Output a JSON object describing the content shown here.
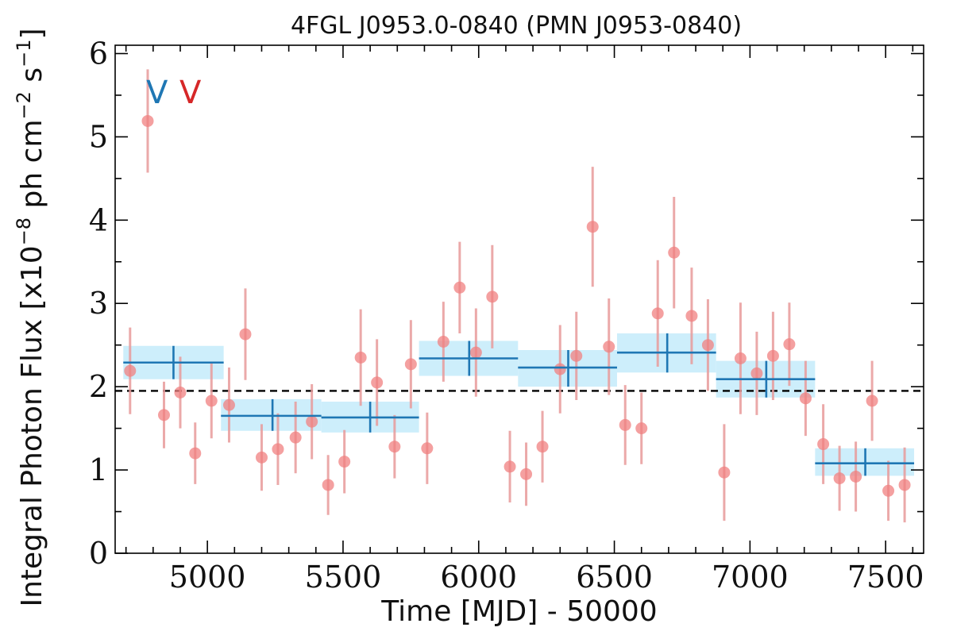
{
  "chart_data": {
    "type": "scatter",
    "title": "4FGL J0953.0-0840 (PMN J0953-0840)",
    "xlabel": "Time [MJD] - 50000",
    "ylabel": "Integral Photon Flux [x10",
    "ylabel_exp1": "−8",
    "ylabel_mid": " ph cm",
    "ylabel_exp2": "−2",
    "ylabel_mid2": " s",
    "ylabel_exp3": "−1",
    "ylabel_end": "]",
    "xlim": [
      4660,
      7640
    ],
    "ylim": [
      0,
      6.1
    ],
    "x_ticks": [
      5000,
      5500,
      6000,
      6500,
      7000,
      7500
    ],
    "x_tick_labels": [
      "5000",
      "5500",
      "6000",
      "6500",
      "7000",
      "7500"
    ],
    "y_ticks": [
      0,
      1,
      2,
      3,
      4,
      5,
      6
    ],
    "y_tick_labels": [
      "0",
      "1",
      "2",
      "3",
      "4",
      "5",
      "6"
    ],
    "reference_flux": 1.95,
    "legend": [
      {
        "label": "V",
        "color": "#1f77b4"
      },
      {
        "label": "V",
        "color": "#d62728"
      }
    ],
    "colors": {
      "bin_line": "#1f77b4",
      "bin_band": "#cdeefb",
      "points": "#f08080",
      "point_err": "#e89a9a",
      "reference_line": "#000000"
    },
    "series": [
      {
        "kind": "binned",
        "x": [
          4875,
          5240,
          5600,
          5965,
          6330,
          6695,
          7060,
          7425
        ],
        "x_lo": [
          4690,
          5050,
          5420,
          5780,
          6145,
          6510,
          6875,
          7240
        ],
        "x_hi": [
          5060,
          5420,
          5780,
          6145,
          6510,
          6875,
          7240,
          7605
        ],
        "y": [
          2.29,
          1.65,
          1.63,
          2.34,
          2.23,
          2.41,
          2.09,
          1.08
        ],
        "y_lo": [
          2.09,
          1.47,
          1.45,
          2.13,
          2.0,
          2.17,
          1.87,
          0.93
        ],
        "y_hi": [
          2.49,
          1.85,
          1.82,
          2.55,
          2.44,
          2.64,
          2.31,
          1.26
        ]
      },
      {
        "kind": "points",
        "x": [
          4715,
          4780,
          4840,
          4900,
          4955,
          5015,
          5080,
          5140,
          5200,
          5260,
          5325,
          5385,
          5445,
          5505,
          5565,
          5625,
          5690,
          5750,
          5810,
          5870,
          5930,
          5990,
          6050,
          6115,
          6175,
          6235,
          6300,
          6360,
          6420,
          6480,
          6540,
          6600,
          6660,
          6720,
          6785,
          6845,
          6905,
          6965,
          7025,
          7085,
          7145,
          7205,
          7270,
          7330,
          7390,
          7450,
          7510,
          7570
        ],
        "y": [
          2.19,
          5.19,
          1.66,
          1.93,
          1.2,
          1.83,
          1.78,
          2.63,
          1.15,
          1.25,
          1.39,
          1.58,
          0.82,
          1.1,
          2.35,
          2.05,
          1.28,
          2.27,
          1.26,
          2.54,
          3.19,
          2.41,
          3.08,
          1.04,
          0.95,
          1.28,
          2.21,
          2.37,
          3.92,
          2.48,
          1.54,
          1.5,
          2.88,
          3.61,
          2.85,
          2.5,
          0.97,
          2.34,
          2.16,
          2.37,
          2.51,
          1.86,
          1.31,
          0.9,
          0.92,
          1.83,
          0.75,
          0.82
        ],
        "y_err": [
          0.52,
          0.62,
          0.4,
          0.43,
          0.37,
          0.45,
          0.45,
          0.55,
          0.4,
          0.43,
          0.43,
          0.45,
          0.36,
          0.38,
          0.58,
          0.52,
          0.38,
          0.53,
          0.43,
          0.48,
          0.55,
          0.53,
          0.62,
          0.43,
          0.38,
          0.43,
          0.53,
          0.53,
          0.72,
          0.58,
          0.48,
          0.43,
          0.64,
          0.67,
          0.58,
          0.55,
          0.58,
          0.67,
          0.5,
          0.53,
          0.5,
          0.45,
          0.48,
          0.39,
          0.42,
          0.48,
          0.36,
          0.45
        ]
      }
    ]
  }
}
